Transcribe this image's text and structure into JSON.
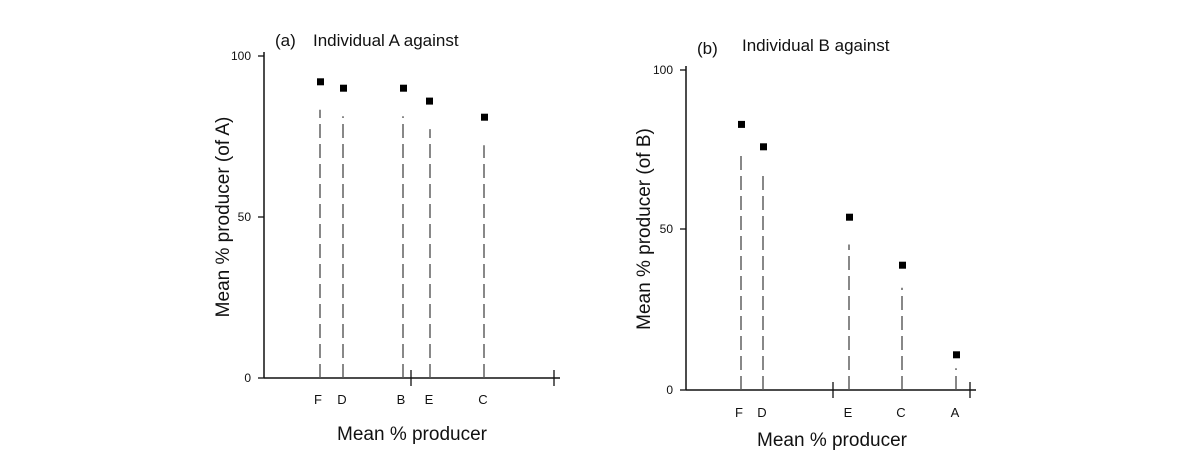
{
  "chart_data": [
    {
      "type": "scatter",
      "panel_label": "(a)",
      "title": "Individual A against",
      "xlabel": "Mean % producer",
      "ylabel": "Mean % producer (of A)",
      "ylim": [
        0,
        100
      ],
      "yticks": [
        0,
        50,
        100
      ],
      "categories": [
        "F",
        "D",
        "B",
        "E",
        "C"
      ],
      "values": [
        92,
        90,
        90,
        86,
        81
      ],
      "grid": false,
      "style": {
        "point_color": "#000000",
        "stem_color": "#555555"
      }
    },
    {
      "type": "scatter",
      "panel_label": "(b)",
      "title": "Individual B against",
      "xlabel": "Mean % producer",
      "ylabel": "Mean % producer (of B)",
      "ylim": [
        0,
        100
      ],
      "yticks": [
        0,
        50,
        100
      ],
      "categories": [
        "F",
        "D",
        "E",
        "C",
        "A"
      ],
      "values": [
        83,
        76,
        54,
        39,
        11
      ],
      "grid": false,
      "style": {
        "point_color": "#000000",
        "stem_color": "#555555"
      }
    }
  ]
}
